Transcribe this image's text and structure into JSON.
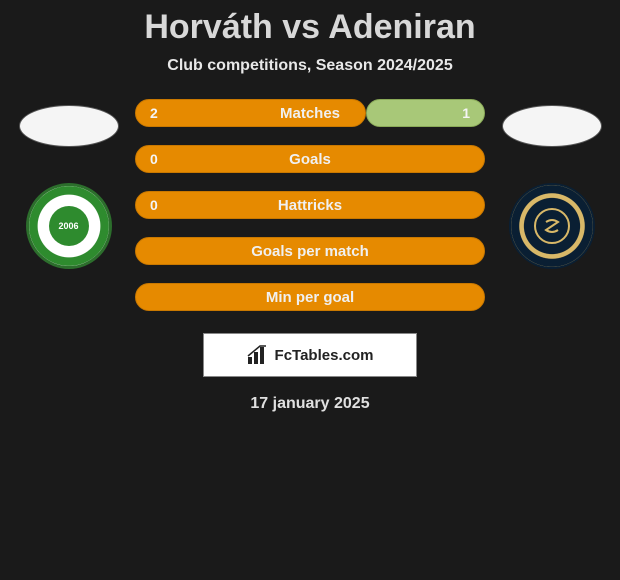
{
  "title": "Horváth vs Adeniran",
  "subtitle": "Club competitions, Season 2024/2025",
  "date": "17 january 2025",
  "footer_brand": "FcTables.com",
  "colors": {
    "left_bar": "#e68a00",
    "right_bar": "#a8c878",
    "background": "#1a1a1a"
  },
  "stats": [
    {
      "label": "Matches",
      "left_value": "2",
      "right_value": "1",
      "left_pct": 66,
      "right_pct": 34,
      "show_right": true
    },
    {
      "label": "Goals",
      "left_value": "0",
      "right_value": "",
      "left_pct": 100,
      "right_pct": 0,
      "show_right": false
    },
    {
      "label": "Hattricks",
      "left_value": "0",
      "right_value": "",
      "left_pct": 100,
      "right_pct": 0,
      "show_right": false
    },
    {
      "label": "Goals per match",
      "left_value": "",
      "right_value": "",
      "left_pct": 100,
      "right_pct": 0,
      "show_right": false
    },
    {
      "label": "Min per goal",
      "left_value": "",
      "right_value": "",
      "left_pct": 100,
      "right_pct": 0,
      "show_right": false
    }
  ],
  "teams": {
    "left": {
      "crest_text": "2006"
    },
    "right": {
      "crest_aria": "Philadelphia Union"
    }
  }
}
